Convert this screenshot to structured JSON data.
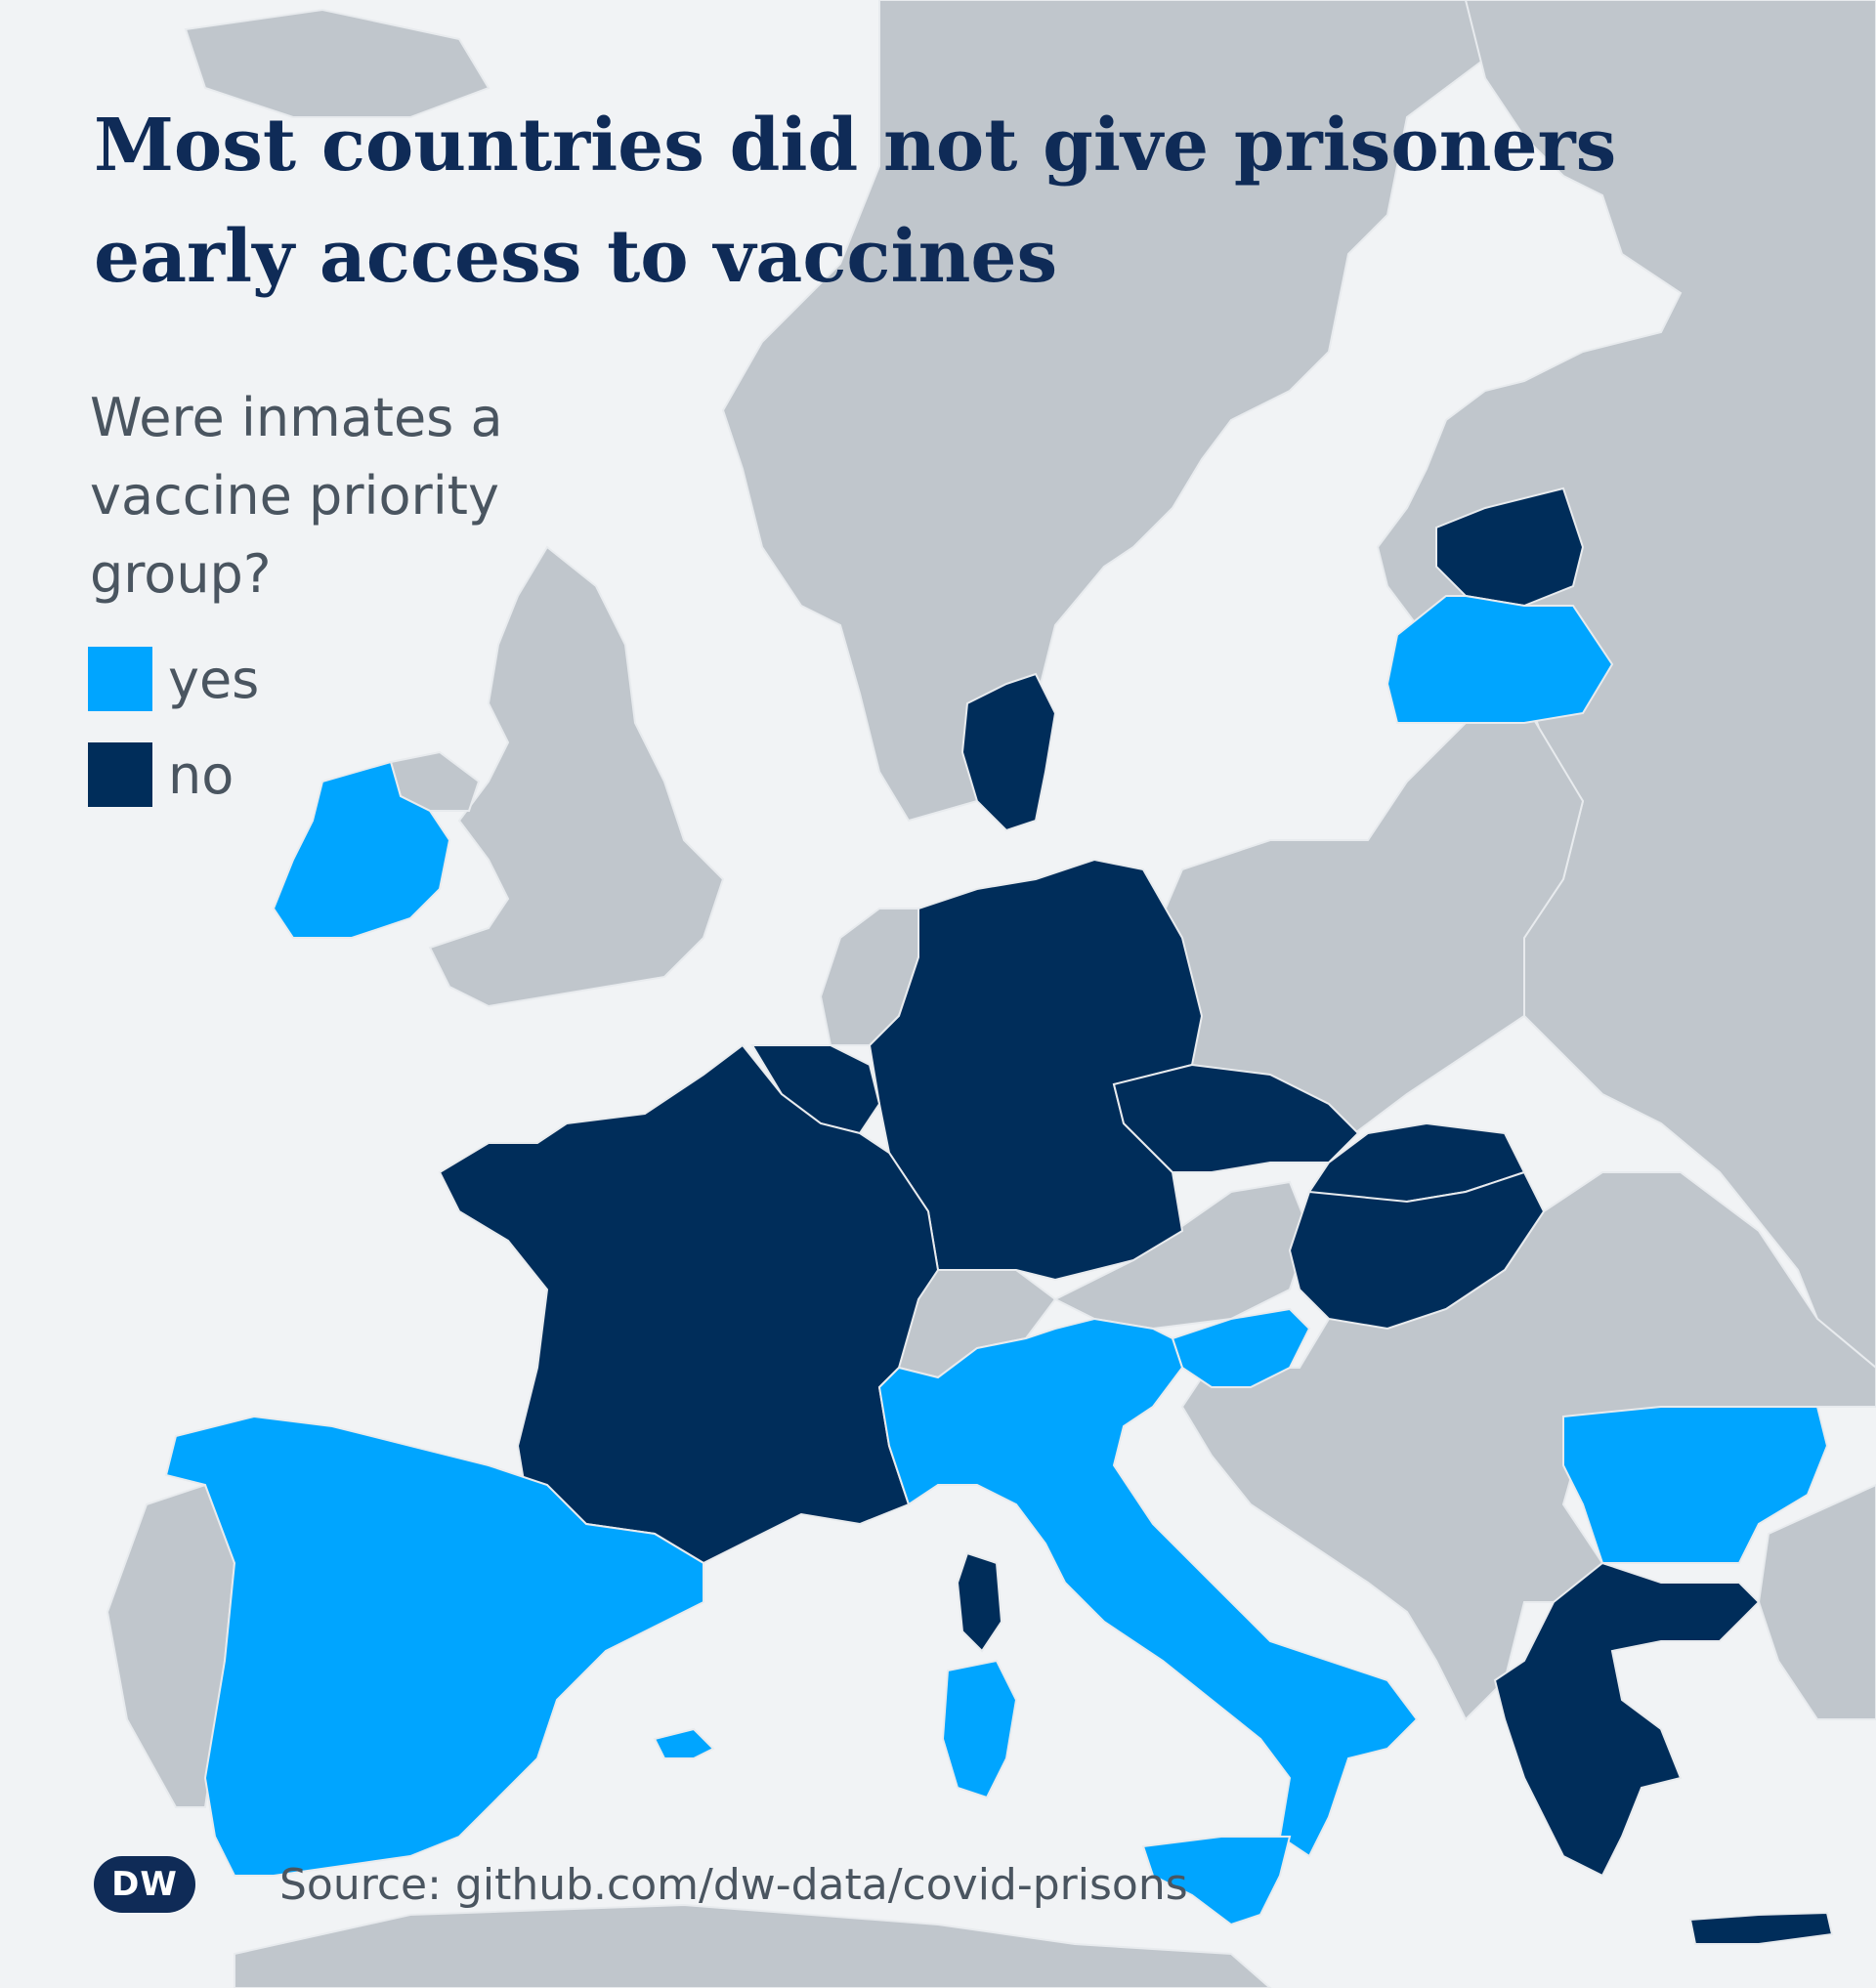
{
  "title": {
    "line1": "Most countries did not give prisoners",
    "line2": "early access to vaccines"
  },
  "legend": {
    "question": [
      "Were inmates a",
      "vaccine priority",
      "group?"
    ],
    "items": [
      {
        "label": "yes",
        "color": "#00a5ff"
      },
      {
        "label": "no",
        "color": "#002d5a"
      }
    ]
  },
  "colors": {
    "sea": "#f1f3f5",
    "land_other": "#c0c6cc",
    "yes": "#00a5ff",
    "no": "#002d5a",
    "border": "#e8ebee"
  },
  "countries": [
    {
      "name": "Ireland",
      "status": "yes"
    },
    {
      "name": "Spain",
      "status": "yes"
    },
    {
      "name": "Italy",
      "status": "yes"
    },
    {
      "name": "Slovenia",
      "status": "yes"
    },
    {
      "name": "Latvia",
      "status": "yes"
    },
    {
      "name": "Bulgaria",
      "status": "yes"
    },
    {
      "name": "France",
      "status": "no"
    },
    {
      "name": "Belgium",
      "status": "no"
    },
    {
      "name": "Luxembourg",
      "status": "no"
    },
    {
      "name": "Germany",
      "status": "no"
    },
    {
      "name": "Denmark",
      "status": "no"
    },
    {
      "name": "Czech Republic",
      "status": "no"
    },
    {
      "name": "Slovakia",
      "status": "no"
    },
    {
      "name": "Hungary",
      "status": "no"
    },
    {
      "name": "Estonia",
      "status": "no"
    },
    {
      "name": "Greece",
      "status": "no"
    }
  ],
  "footer": {
    "logo": "DW",
    "source": "Source: github.com/dw-data/covid-prisons"
  }
}
